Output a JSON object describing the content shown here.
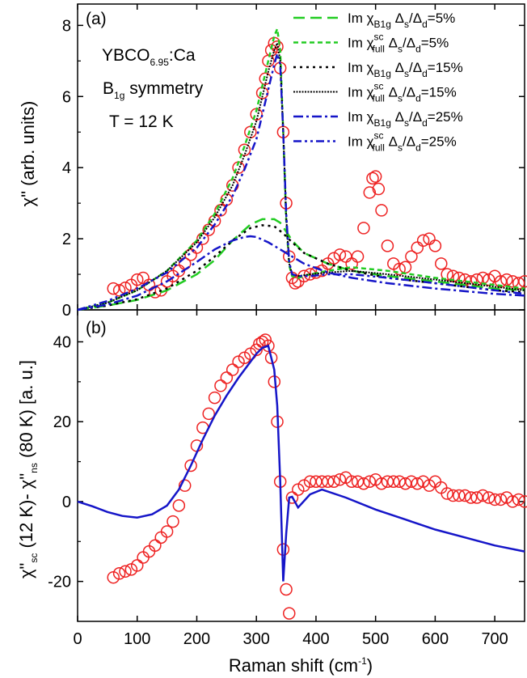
{
  "figure": {
    "x_axis_label": "Raman shift (cm",
    "x_axis_label_sup": "-1",
    "x_axis_label_end": ")",
    "x_tick_labels": [
      "0",
      "100",
      "200",
      "300",
      "400",
      "500",
      "600",
      "700"
    ]
  },
  "chart_data": [
    {
      "panel": "(a)",
      "type": "line",
      "ylabel": "χ\" (arb. units)",
      "xlim": [
        0,
        750
      ],
      "ylim": [
        0,
        8.6
      ],
      "y_ticks": [
        0,
        2,
        4,
        6,
        8
      ],
      "y_tick_labels": [
        "0",
        "2",
        "4",
        "6",
        "8"
      ],
      "grid": false,
      "legend_position": "top-right",
      "annotations": {
        "sample": "YBCO",
        "sample_sub": "6.95",
        "sample_end": ":Ca",
        "sym_pre": "B",
        "sym_sub": "1g",
        "sym_end": " symmetry",
        "temperature": "T = 12 K"
      },
      "legend": [
        {
          "pre": "Im χ",
          "sub": "B1g",
          "sup": "",
          "mid": " Δ",
          "mid_sub": "s",
          "slash": "/Δ",
          "slash_sub": "d",
          "end": "=5%",
          "color": "#22cc22",
          "dash": "14 7",
          "width": 2.5
        },
        {
          "pre": "Im χ",
          "sub": "full",
          "sup": "sc",
          "mid": "  Δ",
          "mid_sub": "s",
          "slash": "/Δ",
          "slash_sub": "d",
          "end": "=5%",
          "color": "#22cc22",
          "dash": "6 4",
          "width": 2.5
        },
        {
          "pre": "Im χ",
          "sub": "B1g",
          "sup": "",
          "mid": " Δ",
          "mid_sub": "s",
          "slash": "/Δ",
          "slash_sub": "d",
          "end": "=15%",
          "color": "#000000",
          "dash": "3 5",
          "width": 2.5
        },
        {
          "pre": "Im χ",
          "sub": "full",
          "sup": "sc",
          "mid": "  Δ",
          "mid_sub": "s",
          "slash": "/Δ",
          "slash_sub": "d",
          "end": "=15%",
          "color": "#000000",
          "dash": "2 1.5",
          "width": 2
        },
        {
          "pre": "Im χ",
          "sub": "B1g",
          "sup": "",
          "mid": " Δ",
          "mid_sub": "s",
          "slash": "/Δ",
          "slash_sub": "d",
          "end": "=25%",
          "color": "#1515c8",
          "dash": "12 4 3 4",
          "width": 2.5
        },
        {
          "pre": "Im χ",
          "sub": "full",
          "sup": "sc",
          "mid": "  Δ",
          "mid_sub": "s",
          "slash": "/Δ",
          "slash_sub": "d",
          "end": "=25%",
          "color": "#1515c8",
          "dash": "10 4 3 4 3 4",
          "width": 2.5
        }
      ],
      "data_points": {
        "marker": "open-circle",
        "color": "#ee2222",
        "x": [
          60,
          70,
          80,
          90,
          100,
          110,
          120,
          130,
          140,
          150,
          160,
          170,
          180,
          190,
          200,
          210,
          220,
          230,
          240,
          250,
          260,
          270,
          280,
          290,
          300,
          310,
          315,
          320,
          325,
          330,
          335,
          340,
          345,
          350,
          355,
          360,
          365,
          370,
          380,
          390,
          400,
          410,
          420,
          430,
          440,
          450,
          460,
          470,
          480,
          490,
          495,
          500,
          505,
          510,
          520,
          530,
          540,
          550,
          560,
          570,
          580,
          590,
          600,
          610,
          620,
          630,
          640,
          650,
          660,
          670,
          680,
          690,
          700,
          710,
          720,
          730,
          740,
          750
        ],
        "y": [
          0.6,
          0.55,
          0.62,
          0.7,
          0.85,
          0.9,
          0.7,
          0.5,
          0.55,
          0.8,
          0.95,
          1.1,
          1.3,
          1.55,
          1.75,
          2.0,
          2.25,
          2.5,
          2.8,
          3.1,
          3.5,
          4.0,
          4.5,
          5.0,
          5.5,
          6.1,
          6.5,
          7.0,
          7.3,
          7.5,
          7.4,
          6.8,
          5.0,
          3.0,
          1.5,
          0.9,
          0.75,
          0.8,
          0.95,
          1.0,
          1.05,
          1.1,
          1.3,
          1.45,
          1.55,
          1.5,
          1.3,
          1.5,
          2.3,
          3.3,
          3.7,
          3.75,
          3.4,
          2.8,
          1.8,
          1.3,
          1.15,
          1.2,
          1.5,
          1.75,
          1.95,
          2.0,
          1.8,
          1.3,
          1.0,
          0.95,
          0.9,
          0.85,
          0.8,
          0.85,
          0.9,
          0.85,
          0.95,
          0.8,
          0.85,
          0.8,
          0.75,
          0.8
        ]
      },
      "series": [
        {
          "x": [
            0,
            50,
            100,
            150,
            200,
            230,
            260,
            290,
            310,
            330,
            340,
            350,
            360,
            380,
            420,
            460,
            520,
            600,
            700,
            750
          ],
          "y": [
            0,
            0.12,
            0.28,
            0.55,
            1.0,
            1.4,
            1.95,
            2.4,
            2.55,
            2.55,
            2.45,
            2.2,
            1.95,
            1.6,
            1.3,
            1.1,
            0.95,
            0.8,
            0.6,
            0.55
          ]
        },
        {
          "x": [
            0,
            50,
            100,
            150,
            200,
            230,
            260,
            280,
            300,
            310,
            320,
            330,
            335,
            340,
            345,
            350,
            355,
            360,
            370,
            390,
            420,
            460,
            520,
            600,
            700,
            750
          ],
          "y": [
            0,
            0.2,
            0.55,
            1.1,
            1.95,
            2.7,
            3.7,
            4.6,
            5.6,
            6.3,
            7.0,
            7.7,
            7.9,
            7.3,
            5.0,
            2.5,
            1.25,
            0.95,
            0.9,
            1.0,
            1.1,
            1.2,
            1.1,
            0.9,
            0.7,
            0.6
          ]
        },
        {
          "x": [
            0,
            50,
            100,
            150,
            200,
            230,
            260,
            290,
            310,
            330,
            345,
            360,
            380,
            420,
            460,
            520,
            600,
            700,
            750
          ],
          "y": [
            0,
            0.12,
            0.3,
            0.6,
            1.1,
            1.5,
            1.95,
            2.3,
            2.38,
            2.35,
            2.15,
            1.9,
            1.6,
            1.3,
            1.1,
            0.9,
            0.75,
            0.55,
            0.5
          ]
        },
        {
          "x": [
            0,
            50,
            100,
            150,
            200,
            230,
            260,
            280,
            300,
            310,
            320,
            330,
            335,
            340,
            345,
            350,
            355,
            360,
            370,
            390,
            420,
            460,
            520,
            600,
            700,
            750
          ],
          "y": [
            0,
            0.2,
            0.55,
            1.1,
            1.9,
            2.6,
            3.5,
            4.35,
            5.3,
            6.0,
            6.7,
            7.3,
            7.5,
            7.0,
            5.0,
            2.6,
            1.3,
            1.0,
            0.95,
            1.0,
            1.05,
            1.1,
            1.0,
            0.85,
            0.65,
            0.55
          ]
        },
        {
          "x": [
            0,
            50,
            100,
            150,
            200,
            230,
            260,
            280,
            290,
            300,
            320,
            340,
            360,
            380,
            420,
            460,
            520,
            600,
            700,
            750
          ],
          "y": [
            0,
            0.15,
            0.4,
            0.8,
            1.35,
            1.7,
            1.95,
            2.05,
            2.07,
            2.05,
            1.9,
            1.7,
            1.5,
            1.3,
            1.05,
            0.9,
            0.75,
            0.6,
            0.45,
            0.4
          ]
        },
        {
          "x": [
            0,
            50,
            100,
            150,
            200,
            230,
            260,
            280,
            300,
            310,
            320,
            330,
            335,
            340,
            345,
            350,
            355,
            360,
            370,
            390,
            420,
            460,
            520,
            600,
            700,
            750
          ],
          "y": [
            0,
            0.25,
            0.6,
            1.05,
            1.75,
            2.4,
            3.2,
            3.95,
            4.8,
            5.5,
            6.2,
            6.9,
            7.2,
            6.9,
            5.0,
            2.7,
            1.35,
            1.0,
            0.95,
            0.95,
            1.0,
            1.0,
            0.9,
            0.75,
            0.55,
            0.45
          ]
        }
      ]
    },
    {
      "panel": "(b)",
      "type": "line",
      "ylabel_parts": {
        "a": "χ\"",
        "a_sub": "sc",
        "b": " (12 K)- χ\"",
        "b_sub": "ns",
        "c": " (80 K) [a. u.]"
      },
      "xlim": [
        0,
        750
      ],
      "ylim": [
        -30,
        48
      ],
      "y_ticks": [
        -20,
        0,
        20,
        40
      ],
      "y_tick_labels": [
        "-20",
        "0",
        "20",
        "40"
      ],
      "grid": false,
      "data_points": {
        "marker": "open-circle",
        "color": "#ee2222",
        "x": [
          60,
          70,
          80,
          90,
          100,
          110,
          120,
          130,
          140,
          150,
          160,
          170,
          180,
          190,
          200,
          210,
          220,
          230,
          240,
          250,
          260,
          270,
          280,
          290,
          300,
          305,
          310,
          315,
          320,
          325,
          330,
          335,
          340,
          345,
          350,
          355,
          360,
          370,
          380,
          390,
          400,
          410,
          420,
          430,
          440,
          450,
          460,
          470,
          480,
          490,
          500,
          510,
          520,
          530,
          540,
          550,
          560,
          570,
          580,
          590,
          600,
          610,
          620,
          630,
          640,
          650,
          660,
          670,
          680,
          690,
          700,
          710,
          720,
          730,
          740,
          750
        ],
        "y": [
          -19,
          -18,
          -17.5,
          -17,
          -16,
          -14,
          -12.5,
          -11,
          -9,
          -7.5,
          -5,
          -1,
          4,
          9,
          14,
          18.5,
          22,
          26,
          29,
          31,
          33,
          35,
          36,
          37,
          38,
          39.5,
          40,
          40.5,
          39,
          36,
          30,
          20,
          5,
          -12,
          -22,
          -28,
          1,
          3,
          4,
          5,
          5,
          5,
          5,
          5,
          5.5,
          6,
          5,
          5,
          4.5,
          5,
          5.5,
          4.5,
          5,
          5,
          5,
          4.5,
          5,
          4.5,
          5,
          4,
          5,
          3.5,
          2,
          1.5,
          1.5,
          1.5,
          1,
          1,
          1.5,
          1,
          0.5,
          0.5,
          1,
          0,
          0.5,
          0
        ]
      },
      "series": [
        {
          "x": [
            0,
            25,
            50,
            75,
            100,
            125,
            150,
            170,
            190,
            210,
            230,
            250,
            270,
            290,
            300,
            310,
            320,
            330,
            335,
            340,
            345,
            350,
            355,
            360,
            370,
            390,
            410,
            450,
            500,
            550,
            600,
            650,
            700,
            750
          ],
          "y": [
            0,
            -1.2,
            -2.6,
            -3.6,
            -4,
            -3.2,
            -1,
            3,
            9,
            15.5,
            21.5,
            26.5,
            31,
            35,
            37,
            38.5,
            39,
            33,
            24,
            5,
            -20,
            -8,
            1,
            1.2,
            -1.5,
            1.8,
            3,
            1,
            -2,
            -4.5,
            -7,
            -9,
            -11,
            -12.5
          ]
        }
      ]
    }
  ]
}
